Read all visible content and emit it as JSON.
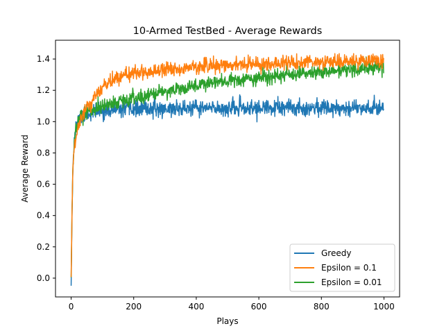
{
  "chart_data": {
    "type": "line",
    "title": "10-Armed TestBed - Average Rewards",
    "xlabel": "Plays",
    "ylabel": "Average Reward",
    "xlim": [
      -50,
      1050
    ],
    "ylim": [
      -0.12,
      1.52
    ],
    "x_ticks": [
      0,
      200,
      400,
      600,
      800,
      1000
    ],
    "x_tick_labels": [
      "0",
      "200",
      "400",
      "600",
      "800",
      "1000"
    ],
    "y_ticks": [
      0.0,
      0.2,
      0.4,
      0.6,
      0.8,
      1.0,
      1.2,
      1.4
    ],
    "y_tick_labels": [
      "0.0",
      "0.2",
      "0.4",
      "0.6",
      "0.8",
      "1.0",
      "1.2",
      "1.4"
    ],
    "grid": false,
    "legend_position": "lower-right",
    "x_range": [
      0,
      999
    ],
    "series": [
      {
        "name": "Greedy",
        "color": "#1f77b4",
        "key_points": [
          [
            0,
            -0.04
          ],
          [
            3,
            0.45
          ],
          [
            6,
            0.72
          ],
          [
            10,
            0.88
          ],
          [
            15,
            0.96
          ],
          [
            25,
            1.02
          ],
          [
            50,
            1.05
          ],
          [
            100,
            1.07
          ],
          [
            200,
            1.08
          ],
          [
            400,
            1.085
          ],
          [
            600,
            1.085
          ],
          [
            800,
            1.09
          ],
          [
            999,
            1.09
          ]
        ],
        "noise": 0.025
      },
      {
        "name": "Epsilon = 0.1",
        "color": "#ff7f0e",
        "key_points": [
          [
            0,
            0.0
          ],
          [
            3,
            0.45
          ],
          [
            6,
            0.72
          ],
          [
            10,
            0.83
          ],
          [
            15,
            0.9
          ],
          [
            25,
            0.98
          ],
          [
            50,
            1.1
          ],
          [
            100,
            1.22
          ],
          [
            150,
            1.28
          ],
          [
            200,
            1.31
          ],
          [
            300,
            1.335
          ],
          [
            400,
            1.35
          ],
          [
            500,
            1.36
          ],
          [
            600,
            1.37
          ],
          [
            700,
            1.375
          ],
          [
            800,
            1.38
          ],
          [
            900,
            1.385
          ],
          [
            999,
            1.39
          ]
        ],
        "noise": 0.022
      },
      {
        "name": "Epsilon = 0.01",
        "color": "#2ca02c",
        "key_points": [
          [
            0,
            0.0
          ],
          [
            3,
            0.45
          ],
          [
            6,
            0.72
          ],
          [
            10,
            0.86
          ],
          [
            15,
            0.95
          ],
          [
            25,
            1.02
          ],
          [
            50,
            1.06
          ],
          [
            100,
            1.1
          ],
          [
            200,
            1.15
          ],
          [
            300,
            1.19
          ],
          [
            400,
            1.23
          ],
          [
            500,
            1.26
          ],
          [
            600,
            1.28
          ],
          [
            700,
            1.3
          ],
          [
            800,
            1.32
          ],
          [
            900,
            1.335
          ],
          [
            999,
            1.35
          ]
        ],
        "noise": 0.022
      }
    ]
  }
}
